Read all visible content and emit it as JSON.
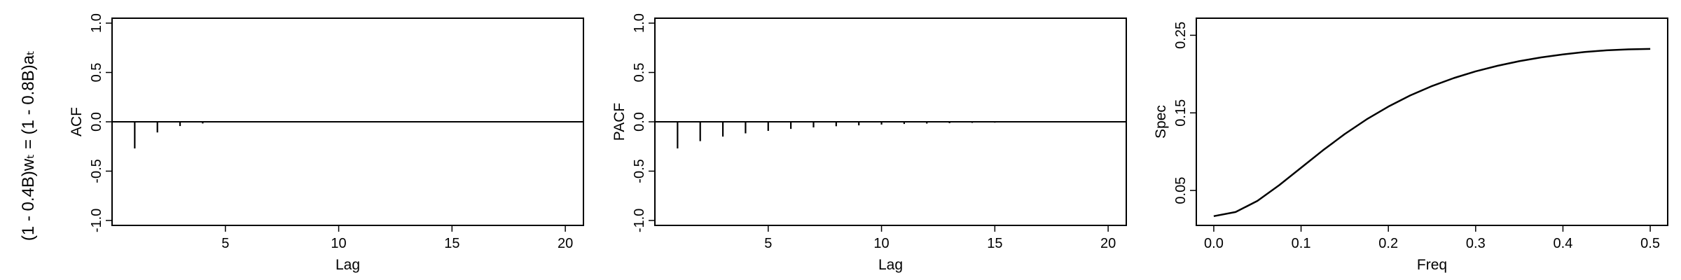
{
  "row_label": "(1 - 0.4B)wₜ = (1 - 0.8B)aₜ",
  "chart_data": [
    {
      "type": "bar",
      "title": "",
      "xlabel": "Lag",
      "ylabel": "ACF",
      "xlim": [
        0,
        20.8
      ],
      "ylim": [
        -1.05,
        1.05
      ],
      "xticks": [
        5,
        10,
        15,
        20
      ],
      "yticks": [
        -1.0,
        -0.5,
        0.0,
        0.5,
        1.0
      ],
      "ytick_labels": [
        "-1.0",
        "-0.5",
        "0.0",
        "0.5",
        "1.0"
      ],
      "x": [
        1,
        2,
        3,
        4,
        5,
        6,
        7,
        8,
        9,
        10,
        11,
        12,
        13,
        14,
        15,
        16,
        17,
        18,
        19,
        20
      ],
      "values": [
        -0.27,
        -0.108,
        -0.043,
        -0.017,
        -0.007,
        -0.003,
        -0.001,
        -0.0004,
        -0.0002,
        -0.0001,
        0,
        0,
        0,
        0,
        0,
        0,
        0,
        0,
        0,
        0
      ],
      "zero_line": true,
      "color": "#000000"
    },
    {
      "type": "bar",
      "title": "",
      "xlabel": "Lag",
      "ylabel": "PACF",
      "xlim": [
        0,
        20.8
      ],
      "ylim": [
        -1.05,
        1.05
      ],
      "xticks": [
        5,
        10,
        15,
        20
      ],
      "yticks": [
        -1.0,
        -0.5,
        0.0,
        0.5,
        1.0
      ],
      "ytick_labels": [
        "-1.0",
        "-0.5",
        "0.0",
        "0.5",
        "1.0"
      ],
      "x": [
        1,
        2,
        3,
        4,
        5,
        6,
        7,
        8,
        9,
        10,
        11,
        12,
        13,
        14,
        15,
        16,
        17,
        18,
        19,
        20
      ],
      "values": [
        -0.27,
        -0.196,
        -0.15,
        -0.117,
        -0.092,
        -0.072,
        -0.057,
        -0.045,
        -0.036,
        -0.028,
        -0.022,
        -0.018,
        -0.014,
        -0.011,
        -0.009,
        -0.007,
        -0.006,
        -0.004,
        -0.004,
        -0.003
      ],
      "zero_line": true,
      "color": "#000000"
    },
    {
      "type": "line",
      "title": "",
      "xlabel": "Freq",
      "ylabel": "Spec",
      "xlim": [
        -0.02,
        0.52
      ],
      "ylim": [
        0.005,
        0.272
      ],
      "xticks": [
        0.0,
        0.1,
        0.2,
        0.3,
        0.4,
        0.5
      ],
      "xtick_labels": [
        "0.0",
        "0.1",
        "0.2",
        "0.3",
        "0.4",
        "0.5"
      ],
      "yticks": [
        0.05,
        0.15,
        0.25
      ],
      "ytick_labels": [
        "0.05",
        "0.15",
        "0.25"
      ],
      "x": [
        0.0,
        0.025,
        0.05,
        0.075,
        0.1,
        0.125,
        0.15,
        0.175,
        0.2,
        0.225,
        0.25,
        0.275,
        0.3,
        0.325,
        0.35,
        0.375,
        0.4,
        0.425,
        0.45,
        0.475,
        0.5
      ],
      "values": [
        0.0169,
        0.0222,
        0.0366,
        0.0569,
        0.0793,
        0.1017,
        0.1227,
        0.1416,
        0.1581,
        0.1724,
        0.1846,
        0.1949,
        0.2035,
        0.2107,
        0.2166,
        0.2215,
        0.2254,
        0.2284,
        0.2306,
        0.2319,
        0.2324
      ],
      "color": "#000000"
    }
  ]
}
